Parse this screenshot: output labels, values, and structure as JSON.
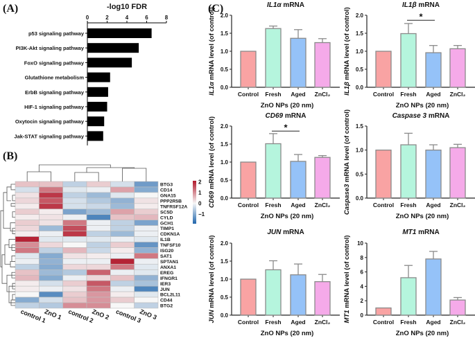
{
  "panels": {
    "a": "(A)",
    "b": "(B)",
    "c": "(C)"
  },
  "chart_data": [
    {
      "type": "bar",
      "orientation": "horizontal",
      "title": "-log10 FDR",
      "categories": [
        "p53 signaling pathway",
        "PI3K-Akt signaling pathway",
        "FoxO signaling pathway",
        "Glutathione metabolism",
        "ErbB signaling pathway",
        "HIF-1 signaling pathway",
        "Oxytocin signaling pathway",
        "Jak-STAT signaling pathway"
      ],
      "values": [
        6.5,
        5.2,
        4.5,
        2.3,
        2.1,
        2.0,
        1.7,
        1.6
      ],
      "xlim": [
        0,
        8
      ],
      "xticks": [
        0,
        2,
        4,
        6,
        8
      ],
      "axis_position": "top",
      "color": "#000000"
    },
    {
      "type": "heatmap",
      "columns": [
        "control 1",
        "ZnO 1",
        "control 2",
        "ZnO 2",
        "control 3",
        "ZnO 3"
      ],
      "rows": [
        "BTG3",
        "CD14",
        "GNA15",
        "PPP2R5B",
        "TNFRSF12A",
        "SC5D",
        "CYLD",
        "GCH1",
        "TIMP1",
        "CDKN1A",
        "IL1B",
        "TNFSF10",
        "ISG20",
        "SAT1",
        "SPTAN1",
        "ANXA1",
        "EREG",
        "IFNGR1",
        "IER3",
        "JUN",
        "BCL2L11",
        "CD44",
        "BTG2"
      ],
      "values": [
        [
          0.5,
          0.5,
          -0.5,
          0.4,
          -0.3,
          -1.2
        ],
        [
          -0.3,
          1.2,
          -0.2,
          -0.1,
          0.8,
          -1.0
        ],
        [
          0.2,
          1.8,
          -0.5,
          -0.8,
          -0.2,
          0.0
        ],
        [
          0.3,
          1.5,
          -0.3,
          -0.6,
          -0.9,
          0.2
        ],
        [
          0.1,
          1.8,
          -0.3,
          -0.4,
          -0.8,
          0.1
        ],
        [
          0.4,
          0.1,
          -1.1,
          -0.8,
          0.8,
          0.4
        ],
        [
          0.1,
          0.2,
          -0.1,
          -1.5,
          0.5,
          0.6
        ],
        [
          0.4,
          0.2,
          1.2,
          -0.1,
          -0.5,
          -1.1
        ],
        [
          0.3,
          -0.8,
          1.6,
          -0.1,
          -0.5,
          -0.1
        ],
        [
          0.1,
          -0.1,
          1.8,
          -0.5,
          -0.8,
          -0.1
        ],
        [
          2.0,
          -0.2,
          -0.2,
          -0.2,
          -0.1,
          -0.2
        ],
        [
          1.0,
          0.3,
          0.0,
          -0.5,
          0.4,
          -1.3
        ],
        [
          1.2,
          -0.5,
          0.6,
          -0.4,
          0.1,
          -0.9
        ],
        [
          -0.2,
          -1.0,
          0.2,
          0.1,
          -0.1,
          1.2
        ],
        [
          -0.1,
          -0.9,
          -0.1,
          -0.1,
          2.0,
          -0.1
        ],
        [
          -0.5,
          -1.0,
          0.3,
          0.3,
          1.2,
          -0.2
        ],
        [
          0.5,
          -0.8,
          -0.6,
          1.4,
          -0.1,
          -0.2
        ],
        [
          0.6,
          -1.0,
          -0.1,
          0.3,
          0.5,
          -0.9
        ],
        [
          0.1,
          -0.3,
          0.4,
          1.5,
          -0.5,
          -0.7
        ],
        [
          0.1,
          -0.1,
          0.2,
          1.2,
          -0.1,
          -1.5
        ],
        [
          0.0,
          -1.4,
          0.4,
          0.9,
          0.1,
          -0.2
        ],
        [
          -1.0,
          -0.3,
          0.5,
          0.9,
          0.4,
          0.0
        ],
        [
          -0.5,
          -0.6,
          1.0,
          1.0,
          0.0,
          -0.5
        ]
      ],
      "color_scale": {
        "low": "#2166ac",
        "mid": "#f7f7f7",
        "high": "#b2182b",
        "range": [
          -1.9,
          2.1
        ],
        "ticks": [
          2,
          1,
          0,
          -1
        ],
        "tick_labels": [
          "2",
          "1",
          "0",
          "−1"
        ]
      },
      "dendrogram": {
        "rows": true,
        "columns": true
      }
    },
    {
      "type": "bar",
      "gene": "IL1α",
      "title_suffix": " mRNA",
      "ylabel_suffix": " mRNA level (of control)",
      "xlabel": "ZnO NPs (20 nm)",
      "categories": [
        "Control",
        "Fresh",
        "Aged",
        "ZnCl₂"
      ],
      "values": [
        1.0,
        1.63,
        1.36,
        1.24
      ],
      "errors": [
        0,
        0.07,
        0.24,
        0.11
      ],
      "ylim": [
        0,
        2.0
      ],
      "yticks": [
        "0.0",
        "0.5",
        "1.0",
        "1.5",
        "2.0"
      ],
      "ystep": 0.5,
      "significance": []
    },
    {
      "type": "bar",
      "gene": "IL1β",
      "title_suffix": " mRNA",
      "ylabel_suffix": " mRNA level (of control)",
      "xlabel": "ZnO NPs (20 nm)",
      "categories": [
        "Control",
        "Fresh",
        "Aged",
        "ZnCl₂"
      ],
      "values": [
        1.0,
        1.49,
        0.96,
        1.07
      ],
      "errors": [
        0,
        0.28,
        0.2,
        0.09
      ],
      "ylim": [
        0,
        2.0
      ],
      "yticks": [
        "0.0",
        "0.5",
        "1.0",
        "1.5",
        "2.0"
      ],
      "ystep": 0.5,
      "significance": [
        {
          "from": "Fresh",
          "to": "Aged",
          "label": "*",
          "level": 1.86
        }
      ]
    },
    {
      "type": "bar",
      "gene": "CD69",
      "title_suffix": " mRNA",
      "ylabel_suffix": " mRNA level (of control)",
      "xlabel": "ZnO NPs (20 nm)",
      "categories": [
        "Control",
        "Fresh",
        "Aged",
        "ZnCl₂"
      ],
      "values": [
        1.0,
        1.51,
        1.02,
        1.13
      ],
      "errors": [
        0,
        0.28,
        0.19,
        0.05
      ],
      "ylim": [
        0,
        2.0
      ],
      "yticks": [
        "0.0",
        "0.5",
        "1.0",
        "1.5",
        "2.0"
      ],
      "ystep": 0.5,
      "significance": [
        {
          "from": "Fresh",
          "to": "Aged",
          "label": "*",
          "level": 1.86
        }
      ]
    },
    {
      "type": "bar",
      "gene": "Caspase 3",
      "title_suffix": " mRNA",
      "ylabel_gene": "Caspase3",
      "ylabel_suffix": " mRNA level (of control)",
      "xlabel": "ZnO NPs (20 nm)",
      "categories": [
        "Control",
        "Fresh",
        "Aged",
        "ZnCl₂"
      ],
      "values": [
        1.0,
        1.11,
        1.0,
        1.05
      ],
      "errors": [
        0,
        0.24,
        0.11,
        0.07
      ],
      "ylim": [
        0,
        1.5
      ],
      "yticks": [
        "0.0",
        "0.5",
        "1.0",
        "1.5"
      ],
      "ystep": 0.5,
      "significance": []
    },
    {
      "type": "bar",
      "gene": "JUN",
      "title_suffix": " mRNA",
      "ylabel_suffix": " mRNA level (of control)",
      "xlabel": "ZnO NPs (20 nm)",
      "categories": [
        "Control",
        "Fresh",
        "Aged",
        "ZnCl₂"
      ],
      "values": [
        1.0,
        1.26,
        1.12,
        0.93
      ],
      "errors": [
        0,
        0.25,
        0.3,
        0.2
      ],
      "ylim": [
        0,
        2.0
      ],
      "yticks": [
        "0.0",
        "0.5",
        "1.0",
        "1.5",
        "2.0"
      ],
      "ystep": 0.5,
      "significance": []
    },
    {
      "type": "bar",
      "gene": "MT1",
      "title_suffix": " mRNA",
      "ylabel_suffix": " mRNA level (of control)",
      "xlabel": "ZnO NPs (20 nm)",
      "categories": [
        "Control",
        "Fresh",
        "Aged",
        "ZnCl₂"
      ],
      "values": [
        1.0,
        5.2,
        7.8,
        2.1
      ],
      "errors": [
        0,
        1.7,
        1.05,
        0.35
      ],
      "ylim": [
        0,
        10
      ],
      "yticks": [
        "0",
        "2",
        "4",
        "6",
        "8",
        "10"
      ],
      "ystep": 2,
      "significance": []
    }
  ],
  "bar_colors": [
    "#f9a3a3",
    "#b5f5dd",
    "#95c2f8",
    "#f5aae9"
  ],
  "bar_edge_color": "#8a8a8a"
}
